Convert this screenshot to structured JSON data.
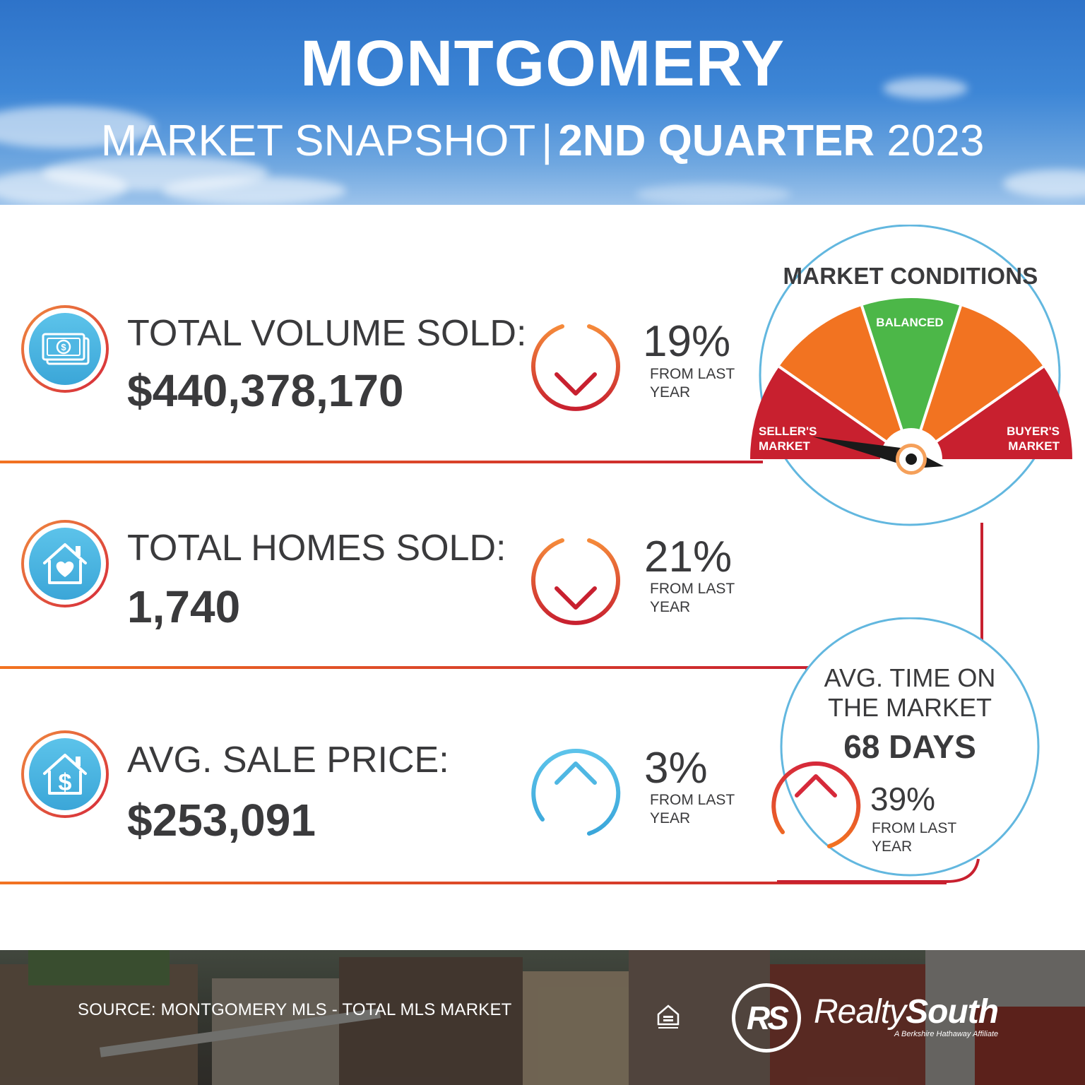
{
  "header": {
    "title": "MONTGOMERY",
    "subtitle_light": "MARKET SNAPSHOT",
    "subtitle_separator": "|",
    "subtitle_bold": "2ND QUARTER",
    "subtitle_year": "2023"
  },
  "stats": [
    {
      "label": "TOTAL VOLUME SOLD:",
      "value": "$440,378,170",
      "change": "19%",
      "direction": "down",
      "change_note": "FROM LAST YEAR",
      "icon": "money-bills-icon"
    },
    {
      "label": "TOTAL HOMES SOLD:",
      "value": "1,740",
      "change": "21%",
      "direction": "down",
      "change_note": "FROM LAST YEAR",
      "icon": "house-heart-icon"
    },
    {
      "label": "AVG. SALE PRICE:",
      "value": "$253,091",
      "change": "3%",
      "direction": "up",
      "change_note": "FROM LAST YEAR",
      "icon": "house-dollar-icon"
    }
  ],
  "market_conditions": {
    "title": "MARKET CONDITIONS",
    "labels": {
      "left": "SELLER'S MARKET",
      "center": "BALANCED",
      "right": "BUYER'S MARKET"
    },
    "needle_position": "seller's market"
  },
  "avg_time": {
    "title": "AVG. TIME ON THE MARKET",
    "value": "68 DAYS",
    "change": "39%",
    "direction": "up",
    "change_note": "FROM LAST YEAR"
  },
  "footer": {
    "source": "SOURCE: MONTGOMERY MLS - TOTAL MLS MARKET",
    "logo_letters": "RS",
    "brand_part1": "Realty",
    "brand_part2": "South",
    "tagline": "A Berkshire Hathaway Affiliate"
  },
  "colors": {
    "sky_blue": "#3d86d6",
    "text_dark": "#3a3a3c",
    "orange": "#f27321",
    "red": "#c8202f",
    "green": "#4cb748",
    "light_blue": "#4fb7e3"
  }
}
